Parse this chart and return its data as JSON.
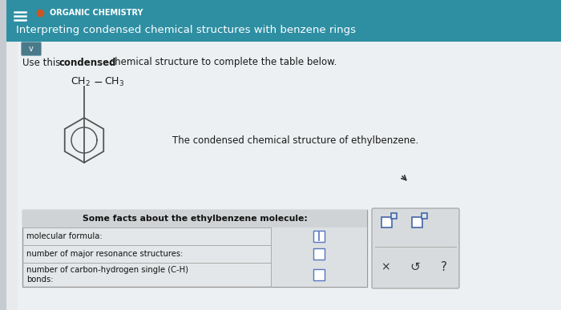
{
  "header_bg": "#2e8fa3",
  "header_text1": "ORGANIC CHEMISTRY",
  "header_text2": "Interpreting condensed chemical structures with benzene rings",
  "body_bg": "#dde4e8",
  "body_content_bg": "#eaecee",
  "orange_dot_color": "#cc5522",
  "header_text_color": "#ffffff",
  "table_header": "Some facts about the ethylbenzene molecule:",
  "row1_label": "molecular formula:",
  "row2_label": "number of major resonance structures:",
  "row3_label": "number of carbon-hydrogen single (C-H)\nbonds:",
  "caption": "The condensed chemical structure of ethylbenzene.",
  "sidebar_color": "#b0b8c0",
  "dropdown_color": "#4a7a8a",
  "left_strip_color": "#c5cbd0"
}
